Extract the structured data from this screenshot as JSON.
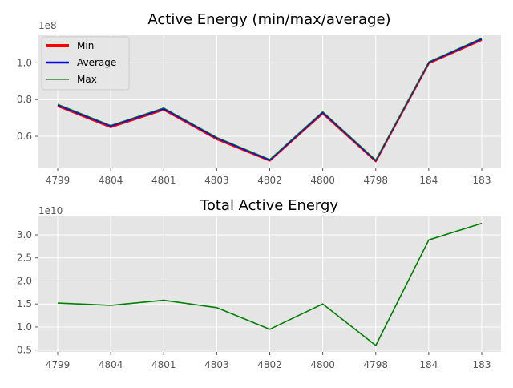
{
  "chart_data": [
    {
      "type": "line",
      "title": "Active Energy (min/max/average)",
      "offset_label": "1e8",
      "xlabel": "",
      "ylabel": "",
      "categories": [
        "4799",
        "4804",
        "4801",
        "4803",
        "4802",
        "4800",
        "4798",
        "184",
        "183"
      ],
      "y_ticks": [
        "0.6",
        "0.8",
        "1.0"
      ],
      "ylim": [
        0.43,
        1.15
      ],
      "grid": true,
      "legend_position": "upper-left",
      "series": [
        {
          "name": "Min",
          "color": "#ff0000",
          "values": [
            0.765,
            0.65,
            0.745,
            0.585,
            0.468,
            0.725,
            0.465,
            0.998,
            1.125
          ]
        },
        {
          "name": "Average",
          "color": "#0000ff",
          "values": [
            0.77,
            0.655,
            0.75,
            0.59,
            0.47,
            0.73,
            0.468,
            1.002,
            1.13
          ]
        },
        {
          "name": "Max",
          "color": "#008000",
          "values": [
            0.775,
            0.66,
            0.755,
            0.595,
            0.475,
            0.735,
            0.472,
            1.006,
            1.135
          ]
        }
      ]
    },
    {
      "type": "line",
      "title": "Total Active Energy",
      "offset_label": "1e10",
      "xlabel": "",
      "ylabel": "",
      "categories": [
        "4799",
        "4804",
        "4801",
        "4803",
        "4802",
        "4800",
        "4798",
        "184",
        "183"
      ],
      "y_ticks": [
        "0.5",
        "1.0",
        "1.5",
        "2.0",
        "2.5",
        "3.0"
      ],
      "ylim": [
        0.46,
        3.4
      ],
      "grid": true,
      "series": [
        {
          "color": "#008000",
          "values": [
            1.52,
            1.47,
            1.58,
            1.42,
            0.95,
            1.5,
            0.6,
            2.89,
            3.25
          ]
        }
      ]
    }
  ]
}
